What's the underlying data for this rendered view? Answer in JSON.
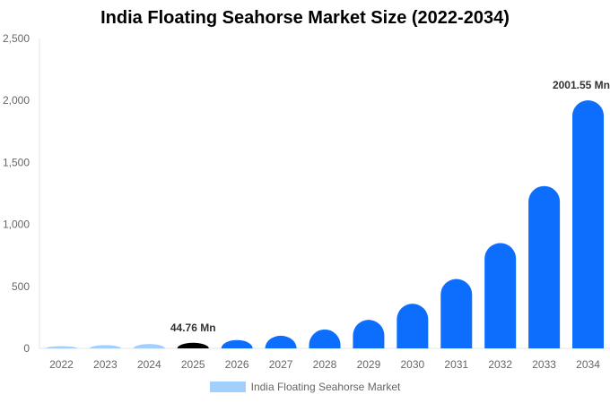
{
  "chart_data": {
    "type": "bar",
    "title": "India Floating Seahorse Market Size (2022-2034)",
    "categories": [
      "2022",
      "2023",
      "2024",
      "2025",
      "2026",
      "2027",
      "2028",
      "2029",
      "2030",
      "2031",
      "2032",
      "2033",
      "2034"
    ],
    "series": [
      {
        "name": "India Floating Seahorse Market",
        "values": [
          18,
          26,
          35,
          44.76,
          67,
          102,
          153,
          230,
          360,
          560,
          850,
          1310,
          2001.55
        ],
        "bar_colors": [
          "#a3cfff",
          "#a3cfff",
          "#a3cfff",
          "#000000",
          "#0d6efd",
          "#0d6efd",
          "#0d6efd",
          "#0d6efd",
          "#0d6efd",
          "#0d6efd",
          "#0d6efd",
          "#0d6efd",
          "#0d6efd"
        ]
      }
    ],
    "ylim": [
      0,
      2500
    ],
    "yticks": [
      0,
      500,
      1000,
      1500,
      2000,
      2500
    ],
    "ytick_labels": [
      "0",
      "500",
      "1,000",
      "1,500",
      "2,000",
      "2,500"
    ],
    "data_labels": [
      {
        "category": "2025",
        "text": "44.76 Mn"
      },
      {
        "category": "2034",
        "text": "2001.55 Mn"
      }
    ],
    "legend": {
      "position": "bottom",
      "label": "India Floating Seahorse Market",
      "color": "#a3cfff"
    },
    "grid": false
  }
}
